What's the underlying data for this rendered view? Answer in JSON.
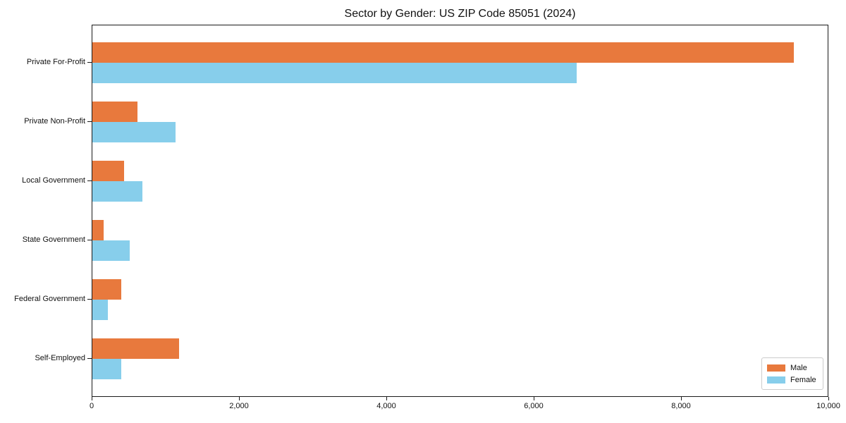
{
  "title": "Sector by Gender: US ZIP Code 85051 (2024)",
  "chart_data": {
    "type": "bar",
    "orientation": "horizontal",
    "title": "Sector by Gender: US ZIP Code 85051 (2024)",
    "xlabel": "",
    "ylabel": "",
    "grid": false,
    "categories": [
      "Private For-Profit",
      "Private Non-Profit",
      "Local Government",
      "State Government",
      "Federal Government",
      "Self-Employed"
    ],
    "series": [
      {
        "name": "Male",
        "color": "#e8793d",
        "values": [
          9520,
          610,
          430,
          150,
          390,
          1180
        ]
      },
      {
        "name": "Female",
        "color": "#87ceeb",
        "values": [
          6570,
          1130,
          680,
          510,
          210,
          390
        ]
      }
    ],
    "xlim": [
      0,
      10000
    ],
    "xticks": {
      "values": [
        0,
        2000,
        4000,
        6000,
        8000,
        10000
      ],
      "labels": [
        "0",
        "2,000",
        "4,000",
        "6,000",
        "8,000",
        "10,000"
      ]
    },
    "legend": {
      "position": "lower right",
      "labels": [
        "Male",
        "Female"
      ]
    }
  }
}
